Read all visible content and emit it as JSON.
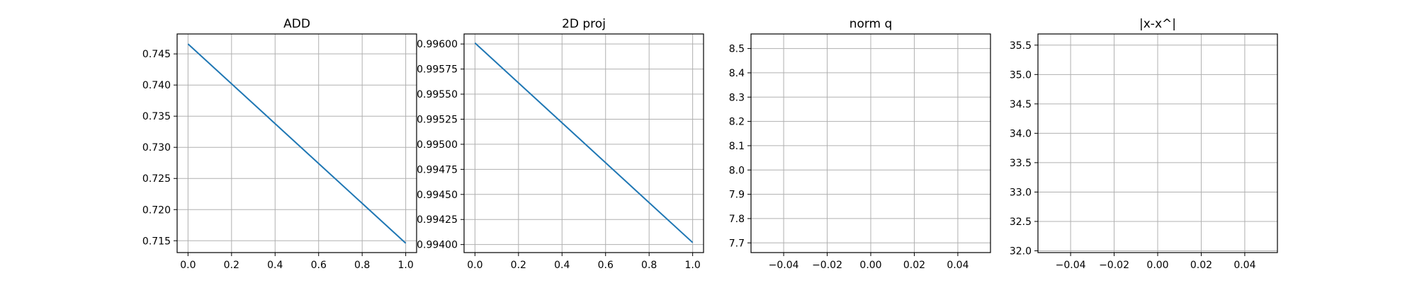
{
  "chart_data": [
    {
      "type": "line",
      "title": "ADD",
      "xlabel": "",
      "ylabel": "",
      "grid": true,
      "xlim": [
        -0.05,
        1.05
      ],
      "ylim": [
        0.7131,
        0.7482
      ],
      "xticks": [
        0.0,
        0.2,
        0.4,
        0.6,
        0.8,
        1.0
      ],
      "xtick_labels": [
        "0.0",
        "0.2",
        "0.4",
        "0.6",
        "0.8",
        "1.0"
      ],
      "yticks": [
        0.715,
        0.72,
        0.725,
        0.73,
        0.735,
        0.74,
        0.745
      ],
      "ytick_labels": [
        "0.715",
        "0.720",
        "0.725",
        "0.730",
        "0.735",
        "0.740",
        "0.745"
      ],
      "series": [
        {
          "color": "#1f77b4",
          "x": [
            0.0,
            1.0
          ],
          "y": [
            0.7466,
            0.7146
          ]
        }
      ]
    },
    {
      "type": "line",
      "title": "2D proj",
      "xlabel": "",
      "ylabel": "",
      "grid": true,
      "xlim": [
        -0.05,
        1.05
      ],
      "ylim": [
        0.99392,
        0.9961
      ],
      "xticks": [
        0.0,
        0.2,
        0.4,
        0.6,
        0.8,
        1.0
      ],
      "xtick_labels": [
        "0.0",
        "0.2",
        "0.4",
        "0.6",
        "0.8",
        "1.0"
      ],
      "yticks": [
        0.994,
        0.99425,
        0.9945,
        0.99475,
        0.995,
        0.99525,
        0.9955,
        0.99575,
        0.996
      ],
      "ytick_labels": [
        "0.99400",
        "0.99425",
        "0.99450",
        "0.99475",
        "0.99500",
        "0.99525",
        "0.99550",
        "0.99575",
        "0.99600"
      ],
      "series": [
        {
          "color": "#1f77b4",
          "x": [
            0.0,
            1.0
          ],
          "y": [
            0.99601,
            0.99402
          ]
        }
      ]
    },
    {
      "type": "line",
      "title": "norm q",
      "xlabel": "",
      "ylabel": "",
      "grid": true,
      "xlim": [
        -0.055,
        0.055
      ],
      "ylim": [
        7.66,
        8.56
      ],
      "xticks": [
        -0.04,
        -0.02,
        0.0,
        0.02,
        0.04
      ],
      "xtick_labels": [
        "−0.04",
        "−0.02",
        "0.00",
        "0.02",
        "0.04"
      ],
      "yticks": [
        7.7,
        7.8,
        7.9,
        8.0,
        8.1,
        8.2,
        8.3,
        8.4,
        8.5
      ],
      "ytick_labels": [
        "7.7",
        "7.8",
        "7.9",
        "8.0",
        "8.1",
        "8.2",
        "8.3",
        "8.4",
        "8.5"
      ],
      "series": []
    },
    {
      "type": "line",
      "title": "|x-x^|",
      "xlabel": "",
      "ylabel": "",
      "grid": true,
      "xlim": [
        -0.055,
        0.055
      ],
      "ylim": [
        31.97,
        35.69
      ],
      "xticks": [
        -0.04,
        -0.02,
        0.0,
        0.02,
        0.04
      ],
      "xtick_labels": [
        "−0.04",
        "−0.02",
        "0.00",
        "0.02",
        "0.04"
      ],
      "yticks": [
        32.0,
        32.5,
        33.0,
        33.5,
        34.0,
        34.5,
        35.0,
        35.5
      ],
      "ytick_labels": [
        "32.0",
        "32.5",
        "33.0",
        "33.5",
        "34.0",
        "34.5",
        "35.0",
        "35.5"
      ],
      "series": []
    }
  ]
}
